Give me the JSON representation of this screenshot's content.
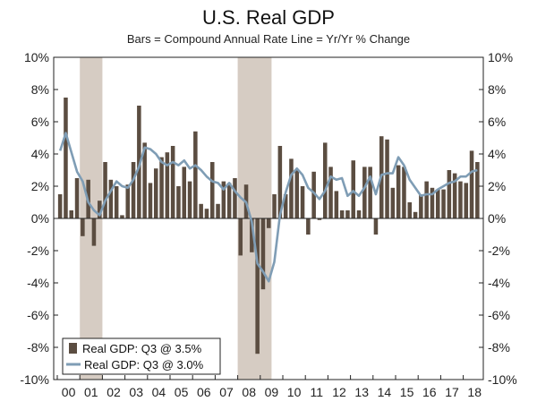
{
  "chart_data": {
    "type": "bar+line",
    "title": "U.S. Real GDP",
    "subtitle": "Bars = Compound Annual Rate      Line = Yr/Yr % Change",
    "ylim": [
      -10,
      10
    ],
    "y_ticks": [
      "10%",
      "8%",
      "6%",
      "4%",
      "2%",
      "0%",
      "-2%",
      "-4%",
      "-6%",
      "-8%",
      "-10%"
    ],
    "x_ticks": [
      "00",
      "01",
      "02",
      "03",
      "04",
      "05",
      "06",
      "07",
      "08",
      "09",
      "10",
      "11",
      "12",
      "13",
      "14",
      "15",
      "16",
      "17",
      "18"
    ],
    "quarters": [
      "2000Q1",
      "2000Q2",
      "2000Q3",
      "2000Q4",
      "2001Q1",
      "2001Q2",
      "2001Q3",
      "2001Q4",
      "2002Q1",
      "2002Q2",
      "2002Q3",
      "2002Q4",
      "2003Q1",
      "2003Q2",
      "2003Q3",
      "2003Q4",
      "2004Q1",
      "2004Q2",
      "2004Q3",
      "2004Q4",
      "2005Q1",
      "2005Q2",
      "2005Q3",
      "2005Q4",
      "2006Q1",
      "2006Q2",
      "2006Q3",
      "2006Q4",
      "2007Q1",
      "2007Q2",
      "2007Q3",
      "2007Q4",
      "2008Q1",
      "2008Q2",
      "2008Q3",
      "2008Q4",
      "2009Q1",
      "2009Q2",
      "2009Q3",
      "2009Q4",
      "2010Q1",
      "2010Q2",
      "2010Q3",
      "2010Q4",
      "2011Q1",
      "2011Q2",
      "2011Q3",
      "2011Q4",
      "2012Q1",
      "2012Q2",
      "2012Q3",
      "2012Q4",
      "2013Q1",
      "2013Q2",
      "2013Q3",
      "2013Q4",
      "2014Q1",
      "2014Q2",
      "2014Q3",
      "2014Q4",
      "2015Q1",
      "2015Q2",
      "2015Q3",
      "2015Q4",
      "2016Q1",
      "2016Q2",
      "2016Q3",
      "2016Q4",
      "2017Q1",
      "2017Q2",
      "2017Q3",
      "2017Q4",
      "2018Q1",
      "2018Q2",
      "2018Q3"
    ],
    "series": [
      {
        "name": "Real GDP: Q3 @ 3.5%",
        "kind": "bar",
        "color": "#5b4d41",
        "values": [
          1.5,
          7.5,
          0.5,
          2.5,
          -1.1,
          2.4,
          -1.7,
          1.1,
          3.5,
          2.4,
          2.0,
          0.2,
          2.1,
          3.5,
          7.0,
          4.7,
          2.2,
          3.1,
          3.8,
          4.1,
          4.5,
          2.0,
          3.2,
          2.3,
          5.4,
          0.9,
          0.6,
          3.5,
          0.9,
          2.3,
          2.2,
          2.5,
          -2.3,
          2.1,
          -2.1,
          -8.4,
          -4.4,
          -0.6,
          1.5,
          4.5,
          1.5,
          3.7,
          3.0,
          2.0,
          -1.0,
          2.9,
          -0.1,
          4.7,
          3.2,
          1.7,
          0.5,
          0.5,
          3.6,
          0.5,
          3.2,
          3.2,
          -1.0,
          5.1,
          4.9,
          1.9,
          3.3,
          3.2,
          1.0,
          0.4,
          1.5,
          2.3,
          1.9,
          1.8,
          1.8,
          3.0,
          2.8,
          2.3,
          2.2,
          4.2,
          3.5
        ]
      },
      {
        "name": "Real GDP: Q3 @ 3.0%",
        "kind": "line",
        "color": "#7f9db5",
        "values": [
          4.2,
          5.3,
          4.1,
          2.9,
          2.3,
          1.0,
          0.5,
          0.2,
          1.1,
          1.7,
          2.3,
          2.0,
          1.9,
          2.4,
          3.2,
          4.4,
          4.3,
          4.0,
          3.5,
          3.3,
          3.5,
          3.3,
          3.6,
          3.1,
          3.3,
          3.0,
          2.6,
          2.3,
          2.2,
          1.8,
          2.2,
          1.7,
          1.3,
          1.0,
          -0.2,
          -2.8,
          -3.3,
          -3.9,
          -2.7,
          0.2,
          1.6,
          2.7,
          3.1,
          2.7,
          1.9,
          1.6,
          1.2,
          1.7,
          2.6,
          2.4,
          2.5,
          1.4,
          1.7,
          1.4,
          1.9,
          2.6,
          1.5,
          2.7,
          2.8,
          2.8,
          3.8,
          3.3,
          2.4,
          1.9,
          1.4,
          1.5,
          1.5,
          1.8,
          2.0,
          2.2,
          2.3,
          2.6,
          2.6,
          2.9,
          3.0
        ]
      }
    ],
    "recessions": [
      {
        "start_quarter": 4,
        "end_quarter": 7
      },
      {
        "start_quarter": 32,
        "end_quarter": 37
      }
    ],
    "legend": {
      "position": "bottom-left"
    }
  }
}
